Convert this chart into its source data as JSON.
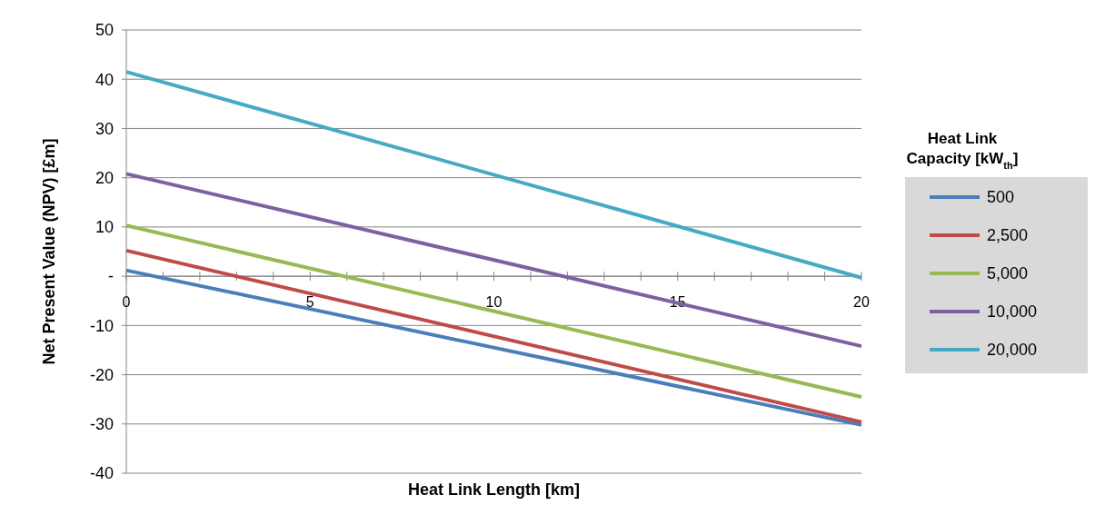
{
  "chart_data": {
    "type": "line",
    "xlabel": "Heat Link Length [km]",
    "ylabel": "Net Present Value (NPV) [£m]",
    "legend_title": "Heat Link Capacity [kW$_{th}$]",
    "x": [
      0,
      20
    ],
    "series": [
      {
        "name": "500",
        "color": "#4a7ebb",
        "values": [
          1.2,
          -30.2
        ]
      },
      {
        "name": "2,500",
        "color": "#be4b48",
        "values": [
          5.2,
          -29.6
        ]
      },
      {
        "name": "5,000",
        "color": "#98b954",
        "values": [
          10.3,
          -24.5
        ]
      },
      {
        "name": "10,000",
        "color": "#7d60a0",
        "values": [
          20.8,
          -14.2
        ]
      },
      {
        "name": "20,000",
        "color": "#46aac5",
        "values": [
          41.5,
          -0.3
        ]
      }
    ],
    "xlim": [
      0,
      20
    ],
    "xticks": [
      0,
      {
        "value": 1,
        "label": null
      },
      {
        "value": 2,
        "label": null
      },
      {
        "value": 3,
        "label": null
      },
      {
        "value": 4,
        "label": null
      },
      5,
      {
        "value": 6,
        "label": null
      },
      {
        "value": 7,
        "label": null
      },
      {
        "value": 8,
        "label": null
      },
      {
        "value": 9,
        "label": null
      },
      10,
      {
        "value": 11,
        "label": null
      },
      {
        "value": 12,
        "label": null
      },
      {
        "value": 13,
        "label": null
      },
      {
        "value": 14,
        "label": null
      },
      15,
      {
        "value": 16,
        "label": null
      },
      {
        "value": 17,
        "label": null
      },
      {
        "value": 18,
        "label": null
      },
      {
        "value": 19,
        "label": null
      },
      20
    ],
    "ylim": [
      -40,
      50
    ],
    "yticks": [
      -40,
      -30,
      -20,
      -10,
      {
        "value": 0,
        "label": "-"
      },
      10,
      20,
      30,
      40,
      50
    ],
    "grid": "y",
    "legend": "right",
    "marker": "none",
    "line_style": "solid"
  }
}
